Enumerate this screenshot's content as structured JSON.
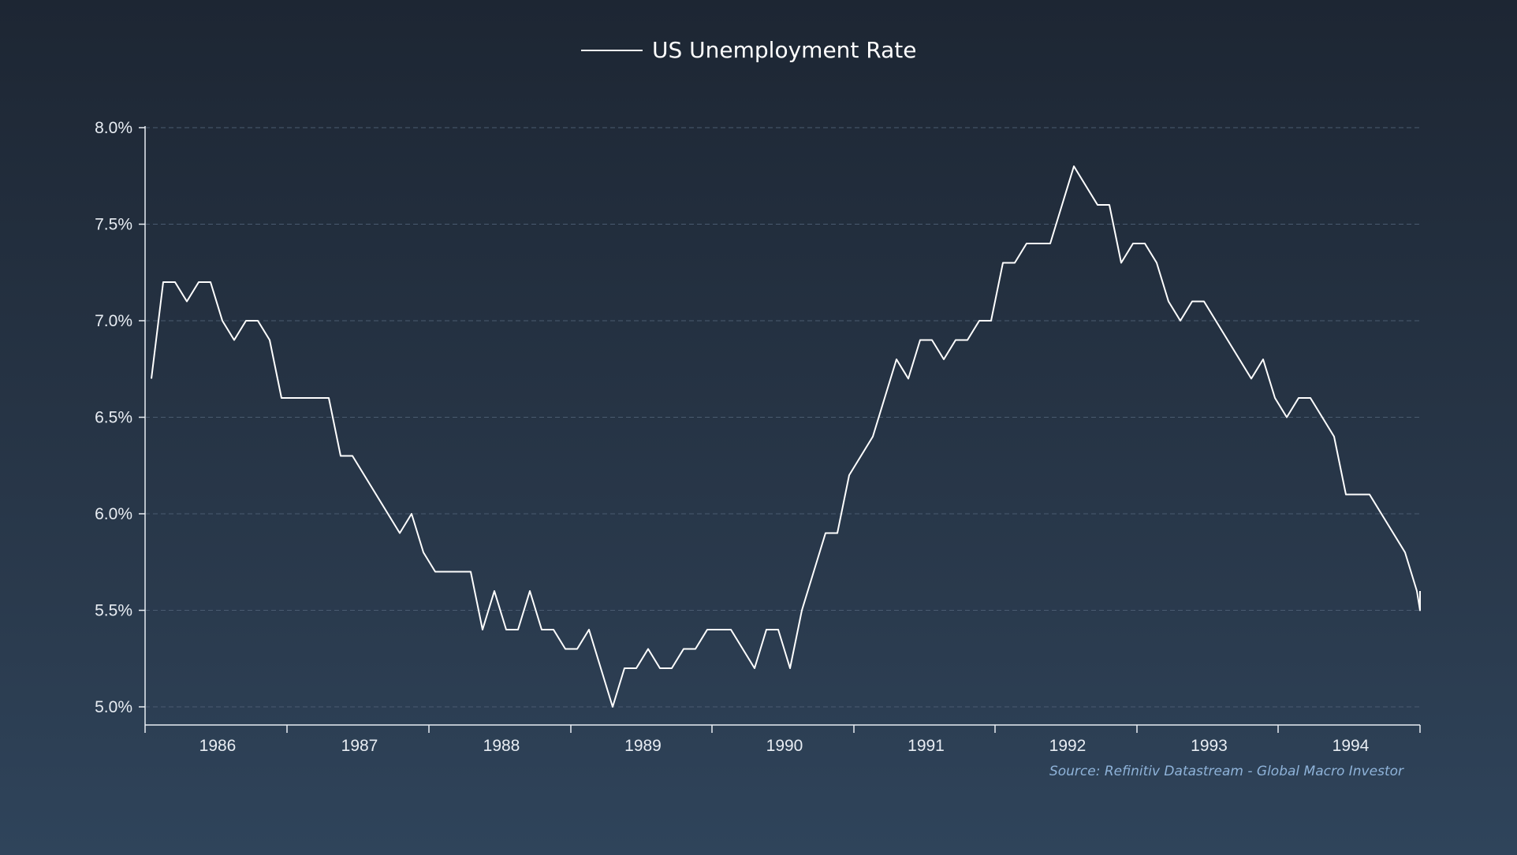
{
  "chart_data": {
    "type": "line",
    "title": "",
    "xlabel": "",
    "ylabel": "",
    "x_start": "1985-08",
    "x_end": "1994-07",
    "x_tick_labels": [
      "1986",
      "1987",
      "1988",
      "1989",
      "1990",
      "1991",
      "1992",
      "1993",
      "1994"
    ],
    "y_ticks": [
      5.0,
      5.5,
      6.0,
      6.5,
      7.0,
      7.5,
      8.0
    ],
    "y_tick_labels": [
      "5.0%",
      "5.5%",
      "6.0%",
      "6.5%",
      "7.0%",
      "7.5%",
      "8.0%"
    ],
    "ylim": [
      4.9,
      8.0
    ],
    "grid": true,
    "legend_position": "top-center",
    "series": [
      {
        "name": "US Unemployment Rate",
        "color": "#ffffff",
        "values": [
          6.7,
          7.2,
          7.2,
          7.1,
          7.2,
          7.2,
          7.0,
          6.9,
          7.0,
          7.0,
          6.9,
          6.6,
          6.6,
          6.6,
          6.6,
          6.6,
          6.3,
          6.3,
          6.2,
          6.1,
          6.0,
          5.9,
          6.0,
          5.8,
          5.7,
          5.7,
          5.7,
          5.7,
          5.4,
          5.6,
          5.4,
          5.4,
          5.6,
          5.4,
          5.4,
          5.3,
          5.3,
          5.4,
          5.2,
          5.0,
          5.2,
          5.2,
          5.3,
          5.2,
          5.2,
          5.3,
          5.3,
          5.4,
          5.4,
          5.4,
          5.3,
          5.2,
          5.4,
          5.4,
          5.2,
          5.5,
          5.7,
          5.9,
          5.9,
          6.2,
          6.3,
          6.4,
          6.6,
          6.8,
          6.7,
          6.9,
          6.9,
          6.8,
          6.9,
          6.9,
          7.0,
          7.0,
          7.3,
          7.3,
          7.4,
          7.4,
          7.4,
          7.6,
          7.8,
          7.7,
          7.6,
          7.6,
          7.3,
          7.4,
          7.4,
          7.3,
          7.1,
          7.0,
          7.1,
          7.1,
          7.0,
          6.9,
          6.8,
          6.7,
          6.8,
          6.6,
          6.5,
          6.6,
          6.6,
          6.5,
          6.4,
          6.1,
          6.1,
          6.1,
          6.0,
          5.9,
          5.8,
          5.6,
          5.5,
          5.6
        ]
      }
    ],
    "source": "Source: Refinitiv Datastream - Global Macro Investor"
  }
}
